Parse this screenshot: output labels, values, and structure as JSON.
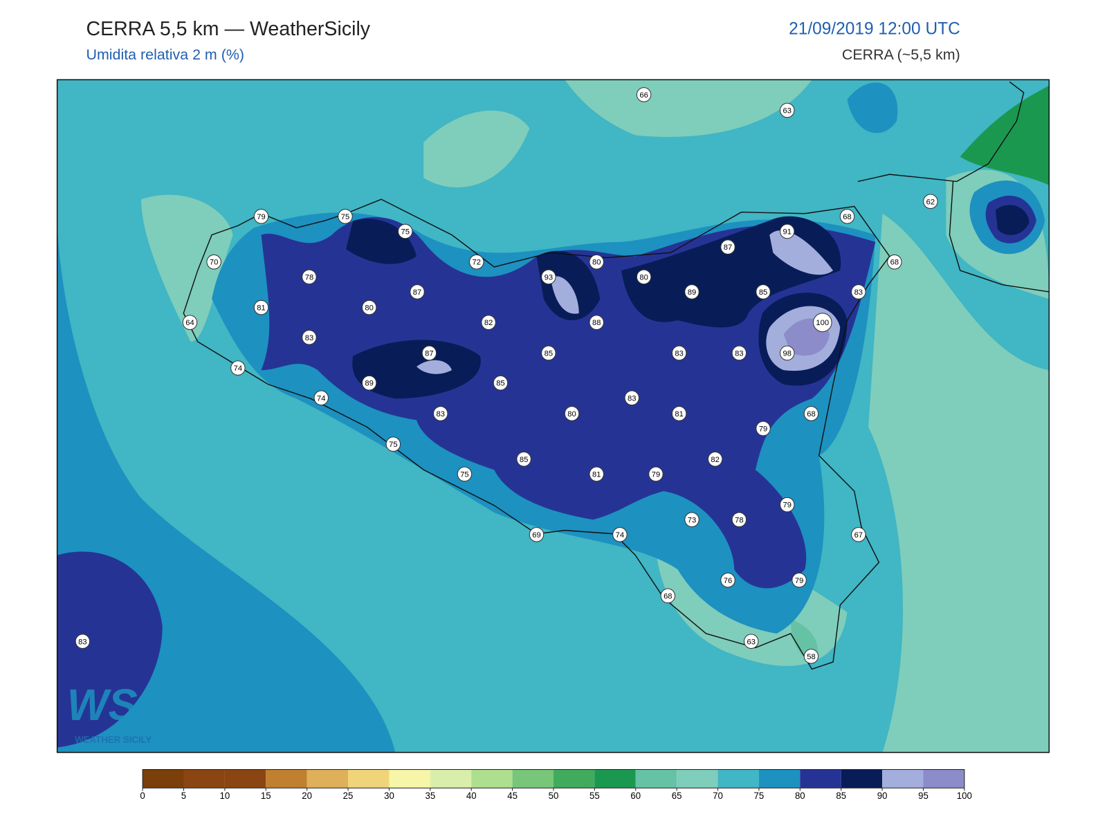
{
  "header": {
    "title": "CERRA 5,5 km — WeatherSicily",
    "subtitle": "Umidita relativa 2 m (%)",
    "datetime": "21/09/2019 12:00 UTC",
    "model": "CERRA (~5,5 km)"
  },
  "stations": [
    66,
    63,
    79,
    75,
    75,
    91,
    87,
    62,
    68,
    70,
    72,
    80,
    80,
    68,
    78,
    93,
    87,
    89,
    85,
    83,
    81,
    80,
    82,
    88,
    100,
    64,
    83,
    87,
    85,
    83,
    83,
    98,
    74,
    89,
    85,
    74,
    83,
    83,
    80,
    81,
    68,
    79,
    75,
    85,
    82,
    75,
    81,
    79,
    79,
    73,
    78,
    69,
    74,
    67,
    76,
    79,
    68,
    83,
    63,
    58
  ],
  "logo": {
    "mark": "WS",
    "text": "WEATHER SICILY"
  },
  "colorbar": {
    "ticks": [
      0,
      5,
      10,
      15,
      20,
      25,
      30,
      35,
      40,
      45,
      50,
      55,
      60,
      65,
      70,
      75,
      80,
      85,
      90,
      95,
      100
    ],
    "colors": [
      "#7a3f0a",
      "#8b4513",
      "#8b4513",
      "#c0802f",
      "#dfb05a",
      "#f0d47a",
      "#f6f5a8",
      "#d9eeaa",
      "#addf8e",
      "#78c679",
      "#41ab5d",
      "#1b9850",
      "#66c2a4",
      "#7fcdbb",
      "#41b6c4",
      "#1d91c0",
      "#253494",
      "#081d58",
      "#a3aedc",
      "#8c8ccb"
    ]
  }
}
